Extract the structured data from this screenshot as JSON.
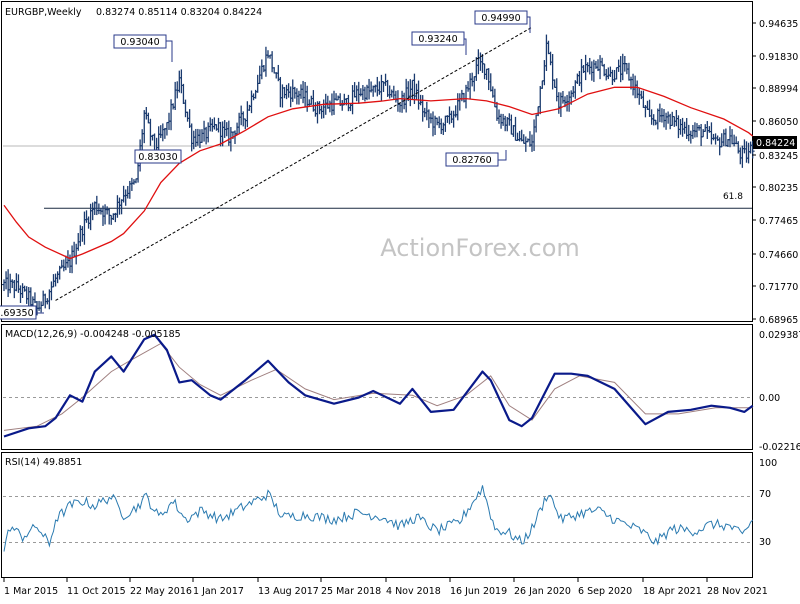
{
  "header": {
    "symbol": "EURGBP,Weekly",
    "ohlc": "0.83274 0.85114 0.83204 0.84224"
  },
  "watermark": "ActionForex.com",
  "fib_label": "61.8",
  "price_label": "0.84224",
  "macd_header": "MACD(12,26,9) -0.004248 -0.005185",
  "rsi_header": "RSI(14) 49.8851",
  "colors": {
    "background": "#ffffff",
    "price_bars": "#1a3a6e",
    "moving_average": "#e01010",
    "macd_line": "#0a1a8a",
    "signal_line": "#a08080",
    "rsi_line": "#2a7ab0",
    "label_box_border": "#2a3a8a"
  },
  "chart_data": [
    {
      "type": "ohlc-bar",
      "title": "EURGBP,Weekly",
      "ylim": [
        0.68965,
        0.96835
      ],
      "y_ticks": [
        "0.94635",
        "0.91830",
        "0.88994",
        "0.86050",
        "0.83245",
        "0.80235",
        "0.77465",
        "0.74660",
        "0.71770",
        "0.68965"
      ],
      "x_ticks": [
        "1 Mar 2015",
        "11 Oct 2015",
        "22 May 2016",
        "1 Jan 2017",
        "13 Aug 2017",
        "25 Mar 2018",
        "4 Nov 2018",
        "16 Jun 2019",
        "26 Jan 2020",
        "6 Sep 2020",
        "18 Apr 2021",
        "28 Nov 2021"
      ],
      "close_path": [
        [
          "2015-03-01",
          0.72
        ],
        [
          "2015-04-12",
          0.718
        ],
        [
          "2015-05-24",
          0.708
        ],
        [
          "2015-06-21",
          0.698
        ],
        [
          "2015-07-19",
          0.708
        ],
        [
          "2015-08-23",
          0.725
        ],
        [
          "2015-10-11",
          0.74
        ],
        [
          "2015-11-22",
          0.77
        ],
        [
          "2016-01-03",
          0.79
        ],
        [
          "2016-02-28",
          0.78
        ],
        [
          "2016-04-10",
          0.8
        ],
        [
          "2016-05-22",
          0.81
        ],
        [
          "2016-06-19",
          0.87
        ],
        [
          "2016-07-24",
          0.84
        ],
        [
          "2016-09-04",
          0.86
        ],
        [
          "2016-10-16",
          0.9
        ],
        [
          "2016-11-27",
          0.85
        ],
        [
          "2017-01-01",
          0.85
        ],
        [
          "2017-02-19",
          0.86
        ],
        [
          "2017-04-02",
          0.85
        ],
        [
          "2017-05-28",
          0.87
        ],
        [
          "2017-07-09",
          0.9
        ],
        [
          "2017-08-13",
          0.925
        ],
        [
          "2017-09-24",
          0.89
        ],
        [
          "2017-11-05",
          0.89
        ],
        [
          "2017-12-17",
          0.885
        ],
        [
          "2018-01-28",
          0.875
        ],
        [
          "2018-03-25",
          0.88
        ],
        [
          "2018-05-06",
          0.88
        ],
        [
          "2018-06-17",
          0.89
        ],
        [
          "2018-07-29",
          0.89
        ],
        [
          "2018-09-09",
          0.895
        ],
        [
          "2018-11-04",
          0.88
        ],
        [
          "2018-12-16",
          0.895
        ],
        [
          "2019-01-27",
          0.87
        ],
        [
          "2019-03-10",
          0.86
        ],
        [
          "2019-04-21",
          0.865
        ],
        [
          "2019-06-16",
          0.89
        ],
        [
          "2019-07-28",
          0.915
        ],
        [
          "2019-08-25",
          0.91
        ],
        [
          "2019-09-29",
          0.87
        ],
        [
          "2019-11-10",
          0.86
        ],
        [
          "2019-12-22",
          0.845
        ],
        [
          "2020-01-26",
          0.845
        ],
        [
          "2020-03-15",
          0.93
        ],
        [
          "2020-04-26",
          0.88
        ],
        [
          "2020-06-07",
          0.89
        ],
        [
          "2020-07-19",
          0.91
        ],
        [
          "2020-09-06",
          0.915
        ],
        [
          "2020-10-18",
          0.905
        ],
        [
          "2020-12-06",
          0.91
        ],
        [
          "2021-01-17",
          0.89
        ],
        [
          "2021-02-28",
          0.865
        ],
        [
          "2021-04-18",
          0.87
        ],
        [
          "2021-06-06",
          0.86
        ],
        [
          "2021-07-18",
          0.855
        ],
        [
          "2021-08-29",
          0.855
        ],
        [
          "2021-10-10",
          0.845
        ],
        [
          "2021-11-28",
          0.85
        ],
        [
          "2022-01-02",
          0.835
        ],
        [
          "2022-01-23",
          0.834
        ],
        [
          "2022-02-13",
          0.8422
        ]
      ],
      "ma_path": [
        [
          "2015-03-01",
          0.79
        ],
        [
          "2015-04-12",
          0.775
        ],
        [
          "2015-05-24",
          0.762
        ],
        [
          "2015-07-19",
          0.753
        ],
        [
          "2015-10-11",
          0.743
        ],
        [
          "2015-11-22",
          0.747
        ],
        [
          "2016-02-28",
          0.758
        ],
        [
          "2016-04-10",
          0.765
        ],
        [
          "2016-06-19",
          0.785
        ],
        [
          "2016-08-14",
          0.81
        ],
        [
          "2016-10-16",
          0.827
        ],
        [
          "2016-12-25",
          0.838
        ],
        [
          "2017-03-05",
          0.844
        ],
        [
          "2017-05-28",
          0.856
        ],
        [
          "2017-08-13",
          0.868
        ],
        [
          "2017-11-05",
          0.875
        ],
        [
          "2018-02-18",
          0.879
        ],
        [
          "2018-06-17",
          0.88
        ],
        [
          "2018-09-09",
          0.882
        ],
        [
          "2018-11-04",
          0.884
        ],
        [
          "2019-02-17",
          0.882
        ],
        [
          "2019-06-16",
          0.884
        ],
        [
          "2019-08-25",
          0.882
        ],
        [
          "2019-11-10",
          0.877
        ],
        [
          "2020-01-26",
          0.87
        ],
        [
          "2020-04-26",
          0.875
        ],
        [
          "2020-08-02",
          0.888
        ],
        [
          "2020-11-01",
          0.894
        ],
        [
          "2021-01-17",
          0.894
        ],
        [
          "2021-04-18",
          0.886
        ],
        [
          "2021-07-18",
          0.876
        ],
        [
          "2021-11-07",
          0.866
        ],
        [
          "2022-01-30",
          0.854
        ],
        [
          "2022-02-13",
          0.851
        ]
      ],
      "trendline": [
        [
          "2015-08-23",
          0.706
        ],
        [
          "2020-01-26",
          0.947
        ]
      ],
      "fib_618_level": 0.7873,
      "last_price": 0.84224,
      "annotations": [
        {
          "label": "0.69350",
          "date": "2015-07-26",
          "value": 0.6935
        },
        {
          "label": "0.93040",
          "date": "2016-10-09",
          "value": 0.9304
        },
        {
          "label": "0.83030",
          "date": "2016-12-04",
          "value": 0.8303
        },
        {
          "label": "0.93240",
          "date": "2019-08-11",
          "value": 0.9324
        },
        {
          "label": "0.94990",
          "date": "2020-03-22",
          "value": 0.9499
        },
        {
          "label": "0.82760",
          "date": "2019-08-25",
          "value": 0.8276
        }
      ]
    },
    {
      "type": "line",
      "title": "MACD(12,26,9) -0.004248 -0.005185",
      "ylim": [
        -0.022161,
        0.029387
      ],
      "y_ticks": [
        "0.029387",
        "0.00",
        "-0.022161"
      ],
      "series": [
        {
          "name": "MACD",
          "points": [
            [
              "2015-03-01",
              -0.019
            ],
            [
              "2015-05-24",
              -0.015
            ],
            [
              "2015-07-19",
              -0.014
            ],
            [
              "2015-08-23",
              -0.01
            ],
            [
              "2015-10-11",
              0.001
            ],
            [
              "2015-11-22",
              -0.002
            ],
            [
              "2016-01-03",
              0.012
            ],
            [
              "2016-02-28",
              0.019
            ],
            [
              "2016-04-10",
              0.012
            ],
            [
              "2016-06-19",
              0.027
            ],
            [
              "2016-07-24",
              0.029
            ],
            [
              "2016-09-04",
              0.022
            ],
            [
              "2016-10-16",
              0.007
            ],
            [
              "2016-11-27",
              0.008
            ],
            [
              "2017-01-29",
              0.001
            ],
            [
              "2017-03-05",
              -0.001
            ],
            [
              "2017-05-28",
              0.008
            ],
            [
              "2017-08-13",
              0.017
            ],
            [
              "2017-10-22",
              0.007
            ],
            [
              "2017-12-17",
              0.001
            ],
            [
              "2018-03-25",
              -0.003
            ],
            [
              "2018-06-17",
              0.0
            ],
            [
              "2018-08-05",
              0.003
            ],
            [
              "2018-11-04",
              -0.003
            ],
            [
              "2018-12-16",
              0.004
            ],
            [
              "2019-02-17",
              -0.007
            ],
            [
              "2019-05-05",
              -0.006
            ],
            [
              "2019-08-11",
              0.012
            ],
            [
              "2019-09-08",
              0.008
            ],
            [
              "2019-11-10",
              -0.011
            ],
            [
              "2019-12-22",
              -0.014
            ],
            [
              "2020-01-26",
              -0.01
            ],
            [
              "2020-04-12",
              0.011
            ],
            [
              "2020-06-07",
              0.011
            ],
            [
              "2020-08-02",
              0.01
            ],
            [
              "2020-11-01",
              0.004
            ],
            [
              "2021-02-14",
              -0.013
            ],
            [
              "2021-05-02",
              -0.007
            ],
            [
              "2021-07-18",
              -0.006
            ],
            [
              "2021-09-26",
              -0.004
            ],
            [
              "2021-11-28",
              -0.005
            ],
            [
              "2022-01-16",
              -0.007
            ],
            [
              "2022-02-13",
              -0.004
            ]
          ]
        },
        {
          "name": "Signal",
          "points": [
            [
              "2015-03-01",
              -0.016
            ],
            [
              "2015-06-21",
              -0.014
            ],
            [
              "2015-09-13",
              -0.008
            ],
            [
              "2015-11-22",
              0.0
            ],
            [
              "2016-02-28",
              0.012
            ],
            [
              "2016-05-01",
              0.017
            ],
            [
              "2016-08-14",
              0.025
            ],
            [
              "2016-10-16",
              0.014
            ],
            [
              "2016-12-25",
              0.006
            ],
            [
              "2017-03-05",
              0.001
            ],
            [
              "2017-06-18",
              0.008
            ],
            [
              "2017-09-10",
              0.013
            ],
            [
              "2017-12-17",
              0.004
            ],
            [
              "2018-03-25",
              -0.001
            ],
            [
              "2018-08-05",
              0.002
            ],
            [
              "2018-12-16",
              0.001
            ],
            [
              "2019-03-10",
              -0.004
            ],
            [
              "2019-06-16",
              0.001
            ],
            [
              "2019-09-08",
              0.01
            ],
            [
              "2019-11-10",
              -0.004
            ],
            [
              "2020-01-26",
              -0.011
            ],
            [
              "2020-04-12",
              0.004
            ],
            [
              "2020-07-05",
              0.01
            ],
            [
              "2020-11-01",
              0.007
            ],
            [
              "2021-02-14",
              -0.008
            ],
            [
              "2021-06-06",
              -0.008
            ],
            [
              "2021-10-10",
              -0.005
            ],
            [
              "2022-02-13",
              -0.005
            ]
          ]
        }
      ]
    },
    {
      "type": "line",
      "title": "RSI(14) 49.8851",
      "ylim": [
        0,
        100
      ],
      "y_ticks": [
        "100",
        "70",
        "30"
      ],
      "reference_levels": [
        70,
        30
      ],
      "series": [
        {
          "name": "RSI",
          "points": [
            [
              "2015-03-01",
              24
            ],
            [
              "2015-03-22",
              44
            ],
            [
              "2015-05-03",
              35
            ],
            [
              "2015-06-21",
              44
            ],
            [
              "2015-08-02",
              28
            ],
            [
              "2015-08-23",
              50
            ],
            [
              "2015-10-11",
              62
            ],
            [
              "2015-11-22",
              66
            ],
            [
              "2016-01-03",
              62
            ],
            [
              "2016-02-28",
              70
            ],
            [
              "2016-04-10",
              54
            ],
            [
              "2016-05-22",
              60
            ],
            [
              "2016-06-26",
              70
            ],
            [
              "2016-08-07",
              52
            ],
            [
              "2016-09-25",
              66
            ],
            [
              "2016-11-06",
              50
            ],
            [
              "2017-01-01",
              58
            ],
            [
              "2017-03-05",
              50
            ],
            [
              "2017-05-14",
              60
            ],
            [
              "2017-08-13",
              72
            ],
            [
              "2017-10-01",
              52
            ],
            [
              "2017-12-17",
              54
            ],
            [
              "2018-03-25",
              50
            ],
            [
              "2018-06-17",
              56
            ],
            [
              "2018-09-09",
              52
            ],
            [
              "2018-11-04",
              44
            ],
            [
              "2018-12-30",
              52
            ],
            [
              "2019-03-10",
              40
            ],
            [
              "2019-05-26",
              48
            ],
            [
              "2019-08-11",
              78
            ],
            [
              "2019-09-22",
              42
            ],
            [
              "2019-11-10",
              38
            ],
            [
              "2019-12-22",
              30
            ],
            [
              "2020-01-26",
              42
            ],
            [
              "2020-03-22",
              74
            ],
            [
              "2020-05-03",
              50
            ],
            [
              "2020-07-19",
              56
            ],
            [
              "2020-09-06",
              58
            ],
            [
              "2020-11-01",
              50
            ],
            [
              "2021-01-31",
              40
            ],
            [
              "2021-03-21",
              30
            ],
            [
              "2021-05-16",
              42
            ],
            [
              "2021-08-01",
              40
            ],
            [
              "2021-09-26",
              46
            ],
            [
              "2021-11-28",
              44
            ],
            [
              "2022-01-09",
              36
            ],
            [
              "2022-02-13",
              50
            ]
          ]
        }
      ]
    }
  ]
}
